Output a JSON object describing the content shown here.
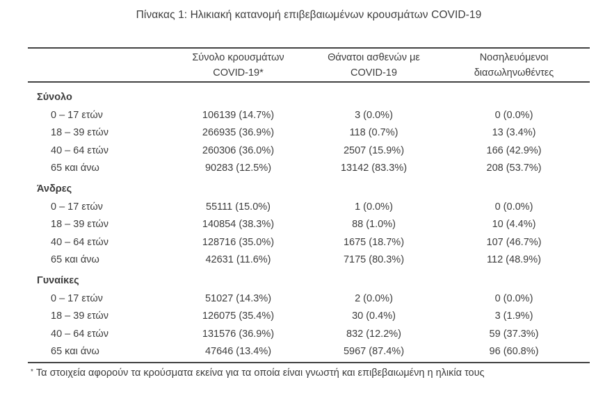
{
  "title": "Πίνακας 1: Ηλικιακή κατανομή επιβεβαιωμένων κρουσμάτων COVID-19",
  "table": {
    "column_headers": {
      "cases": {
        "line1": "Σύνολο κρουσμάτων",
        "line2": "COVID-19*"
      },
      "deaths": {
        "line1": "Θάνατοι ασθενών με",
        "line2": "COVID-19"
      },
      "intubated": {
        "line1": "Νοσηλευόμενοι",
        "line2": "διασωληνωθέντες"
      }
    },
    "sections": [
      {
        "label": "Σύνολο",
        "rows": [
          {
            "label": "0 – 17 ετών",
            "cases": "106139 (14.7%)",
            "deaths": "3 (0.0%)",
            "intubated": "0 (0.0%)"
          },
          {
            "label": "18 – 39 ετών",
            "cases": "266935 (36.9%)",
            "deaths": "118 (0.7%)",
            "intubated": "13 (3.4%)"
          },
          {
            "label": "40 – 64 ετών",
            "cases": "260306 (36.0%)",
            "deaths": "2507 (15.9%)",
            "intubated": "166 (42.9%)"
          },
          {
            "label": "65 και άνω",
            "cases": "90283 (12.5%)",
            "deaths": "13142 (83.3%)",
            "intubated": "208 (53.7%)"
          }
        ]
      },
      {
        "label": "Άνδρες",
        "rows": [
          {
            "label": "0 – 17 ετών",
            "cases": "55111 (15.0%)",
            "deaths": "1 (0.0%)",
            "intubated": "0 (0.0%)"
          },
          {
            "label": "18 – 39 ετών",
            "cases": "140854 (38.3%)",
            "deaths": "88 (1.0%)",
            "intubated": "10 (4.4%)"
          },
          {
            "label": "40 – 64 ετών",
            "cases": "128716 (35.0%)",
            "deaths": "1675 (18.7%)",
            "intubated": "107 (46.7%)"
          },
          {
            "label": "65 και άνω",
            "cases": "42631 (11.6%)",
            "deaths": "7175 (80.3%)",
            "intubated": "112 (48.9%)"
          }
        ]
      },
      {
        "label": "Γυναίκες",
        "rows": [
          {
            "label": "0 – 17 ετών",
            "cases": "51027 (14.3%)",
            "deaths": "2 (0.0%)",
            "intubated": "0 (0.0%)"
          },
          {
            "label": "18 – 39 ετών",
            "cases": "126075 (35.4%)",
            "deaths": "30 (0.4%)",
            "intubated": "3 (1.9%)"
          },
          {
            "label": "40 – 64 ετών",
            "cases": "131576 (36.9%)",
            "deaths": "832 (12.2%)",
            "intubated": "59 (37.3%)"
          },
          {
            "label": "65 και άνω",
            "cases": "47646 (13.4%)",
            "deaths": "5967 (87.4%)",
            "intubated": "96 (60.8%)"
          }
        ]
      }
    ],
    "footnote_marker": "*",
    "footnote": "Τα στοιχεία αφορούν τα κρούσματα εκείνα για τα οποία είναι γνωστή και επιβεβαιωμένη η ηλικία τους"
  },
  "colors": {
    "text": "#3c3c3c",
    "rule": "#414141",
    "background": "#ffffff"
  }
}
